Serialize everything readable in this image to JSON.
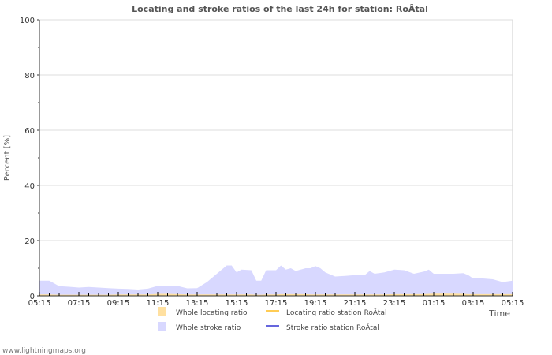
{
  "chart_data": {
    "type": "area",
    "title": "Locating and stroke ratios of the last 24h for station: RoÃtal",
    "xlabel": "Time",
    "ylabel": "Percent   [%]",
    "ylim": [
      0,
      100
    ],
    "yticks": [
      0,
      20,
      40,
      60,
      80,
      100
    ],
    "xticks": [
      "05:15",
      "07:15",
      "09:15",
      "11:15",
      "13:15",
      "15:15",
      "17:15",
      "19:15",
      "21:15",
      "23:15",
      "01:15",
      "03:15",
      "05:15"
    ],
    "x_hours": [
      0,
      0.5,
      1,
      1.5,
      2,
      2.5,
      3,
      3.5,
      4,
      4.5,
      5,
      5.5,
      6,
      6.5,
      7,
      7.5,
      8,
      8.5,
      9,
      9.5,
      9.75,
      10,
      10.25,
      10.75,
      11,
      11.25,
      11.5,
      12,
      12.25,
      12.5,
      12.75,
      13,
      13.5,
      13.75,
      14,
      14.25,
      14.5,
      15,
      15.5,
      16,
      16.5,
      16.75,
      17,
      17.5,
      18,
      18.5,
      19,
      19.5,
      19.75,
      20,
      20.5,
      21,
      21.5,
      21.75,
      22,
      22.5,
      23,
      23.5,
      24
    ],
    "series": [
      {
        "name": "Whole stroke ratio",
        "color": "#d8d8ff",
        "kind": "area",
        "values": [
          5.5,
          5.5,
          3.5,
          3.3,
          3.0,
          3.2,
          3.0,
          2.8,
          2.6,
          2.5,
          2.3,
          2.6,
          3.6,
          3.6,
          3.6,
          2.7,
          2.8,
          5,
          8,
          11,
          11,
          8.5,
          9.5,
          9.3,
          5.5,
          5.5,
          9.3,
          9.3,
          11,
          9.5,
          10,
          9,
          10,
          10,
          10.8,
          10,
          8.5,
          7,
          7.2,
          7.5,
          7.5,
          9,
          8,
          8.5,
          9.5,
          9.3,
          8,
          8.8,
          9.5,
          8,
          8,
          8,
          8.2,
          7.5,
          6.3,
          6.3,
          6,
          5,
          5.5
        ]
      },
      {
        "name": "Whole locating ratio",
        "color": "#ffe0a0",
        "kind": "area",
        "values": [
          0.5,
          0.5,
          0.4,
          0.4,
          0.4,
          0.4,
          0.4,
          0.4,
          0.5,
          0.5,
          0.5,
          0.5,
          0.7,
          0.7,
          0.6,
          0.5,
          0.5,
          0.5,
          0.5,
          0.5,
          0.5,
          0.5,
          0.5,
          0.5,
          0.4,
          0.4,
          0.5,
          0.5,
          0.6,
          0.6,
          0.6,
          0.6,
          0.6,
          0.5,
          0.5,
          0.5,
          0.5,
          0.5,
          0.5,
          0.5,
          0.5,
          0.5,
          0.5,
          0.5,
          0.6,
          0.6,
          0.6,
          0.6,
          0.7,
          0.8,
          0.8,
          0.8,
          0.7,
          0.6,
          0.6,
          0.6,
          0.6,
          0.6,
          0.6
        ]
      },
      {
        "name": "Locating ratio station RoÃtal",
        "color": "#ffcc55",
        "kind": "line",
        "values": []
      },
      {
        "name": "Stroke ratio station RoÃtal",
        "color": "#6666dd",
        "kind": "line",
        "values": []
      }
    ],
    "legend_position": "bottom"
  },
  "footer": "www.lightningmaps.org"
}
